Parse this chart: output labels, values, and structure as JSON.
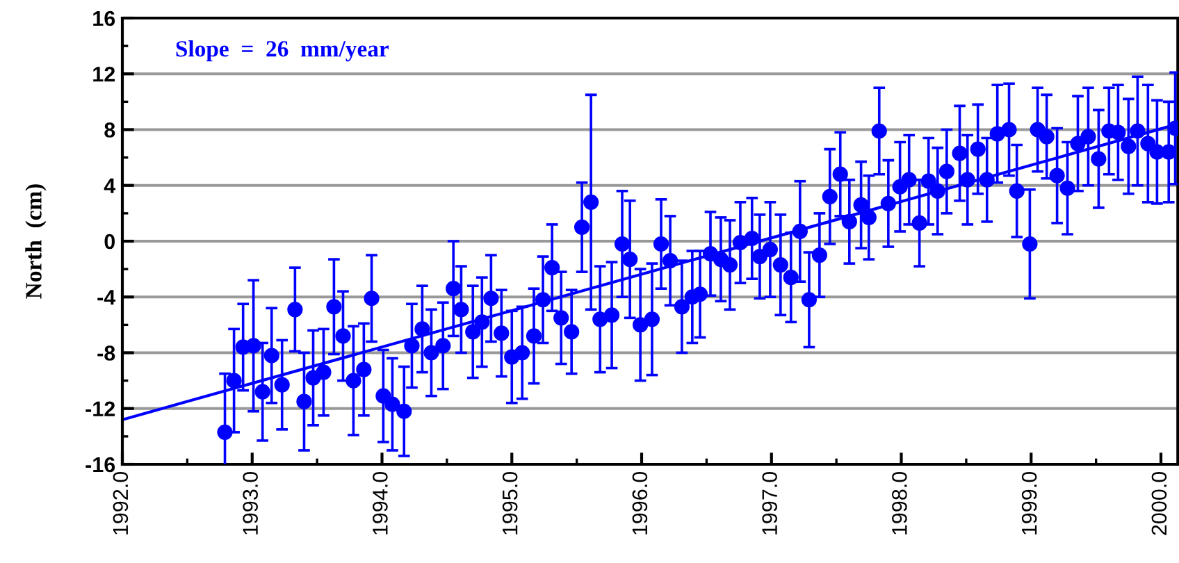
{
  "chart_data": {
    "type": "scatter",
    "ylabel": "North  (cm)",
    "annotations": [
      "Slope  =  26  mm/year"
    ],
    "xlim": [
      1992.0,
      2000.13
    ],
    "xticks": [
      {
        "value": 1992,
        "label": "1992.0"
      },
      {
        "value": 1993,
        "label": "1993.0"
      },
      {
        "value": 1994,
        "label": "1994.0"
      },
      {
        "value": 1995,
        "label": "1995.0"
      },
      {
        "value": 1996,
        "label": "1996.0"
      },
      {
        "value": 1997,
        "label": "1997.0"
      },
      {
        "value": 1998,
        "label": "1998.0"
      },
      {
        "value": 1999,
        "label": "1999.0"
      },
      {
        "value": 2000,
        "label": "2000.0"
      }
    ],
    "ylim": [
      -16,
      16
    ],
    "yticks": [
      -16,
      -12,
      -8,
      -4,
      0,
      4,
      8,
      12,
      16
    ],
    "grid": "y",
    "marker": "circle",
    "series": [
      {
        "color": "#0000ff",
        "x": [
          1992.79,
          1992.86,
          1992.93,
          1993.01,
          1993.08,
          1993.15,
          1993.23,
          1993.33,
          1993.4,
          1993.47,
          1993.55,
          1993.63,
          1993.7,
          1993.78,
          1993.86,
          1993.92,
          1994.01,
          1994.08,
          1994.17,
          1994.23,
          1994.31,
          1994.38,
          1994.47,
          1994.55,
          1994.61,
          1994.7,
          1994.77,
          1994.84,
          1994.92,
          1995.0,
          1995.08,
          1995.17,
          1995.24,
          1995.31,
          1995.38,
          1995.46,
          1995.54,
          1995.61,
          1995.68,
          1995.77,
          1995.85,
          1995.91,
          1995.99,
          1996.08,
          1996.15,
          1996.22,
          1996.31,
          1996.39,
          1996.45,
          1996.53,
          1996.61,
          1996.68,
          1996.76,
          1996.85,
          1996.91,
          1996.99,
          1997.07,
          1997.15,
          1997.22,
          1997.29,
          1997.37,
          1997.45,
          1997.53,
          1997.6,
          1997.69,
          1997.75,
          1997.83,
          1997.9,
          1997.99,
          1998.06,
          1998.14,
          1998.21,
          1998.28,
          1998.35,
          1998.45,
          1998.51,
          1998.59,
          1998.66,
          1998.74,
          1998.83,
          1998.89,
          1998.99,
          1999.05,
          1999.12,
          1999.2,
          1999.28,
          1999.36,
          1999.44,
          1999.52,
          1999.6,
          1999.67,
          1999.75,
          1999.82,
          1999.9,
          1999.97,
          2000.06,
          2000.11
        ],
        "values": [
          -13.7,
          -10.0,
          -7.6,
          -7.5,
          -10.8,
          -8.2,
          -10.3,
          -4.9,
          -11.5,
          -9.8,
          -9.4,
          -4.7,
          -6.8,
          -10.0,
          -9.2,
          -4.1,
          -11.1,
          -11.7,
          -12.2,
          -7.5,
          -6.3,
          -8.0,
          -7.5,
          -3.4,
          -4.9,
          -6.5,
          -5.8,
          -4.1,
          -6.6,
          -8.3,
          -8.0,
          -6.8,
          -4.2,
          -1.9,
          -5.5,
          -6.5,
          1.0,
          2.8,
          -5.6,
          -5.3,
          -0.2,
          -1.3,
          -6.0,
          -5.6,
          -0.2,
          -1.4,
          -4.7,
          -4.0,
          -3.8,
          -0.9,
          -1.3,
          -1.7,
          -0.1,
          0.2,
          -1.1,
          -0.6,
          -1.7,
          -2.6,
          0.7,
          -4.2,
          -1.0,
          3.2,
          4.8,
          1.4,
          2.6,
          1.7,
          7.9,
          2.7,
          3.9,
          4.4,
          1.3,
          4.3,
          3.6,
          5.0,
          6.3,
          4.4,
          6.6,
          4.4,
          7.7,
          8.0,
          3.6,
          -0.2,
          8.0,
          7.5,
          4.7,
          3.8,
          7.0,
          7.5,
          5.9,
          7.9,
          7.8,
          6.8,
          7.9,
          7.0,
          6.4,
          6.4,
          8.1
        ],
        "errors": [
          4.2,
          3.7,
          3.1,
          4.7,
          3.5,
          3.4,
          3.2,
          3.0,
          3.5,
          3.4,
          3.1,
          3.4,
          3.2,
          3.9,
          3.3,
          3.1,
          3.3,
          3.3,
          3.2,
          3.0,
          3.1,
          3.1,
          3.1,
          3.4,
          3.1,
          3.3,
          3.2,
          3.1,
          3.1,
          3.3,
          3.3,
          3.4,
          3.1,
          3.1,
          3.3,
          3.0,
          3.2,
          7.7,
          3.8,
          3.8,
          3.8,
          4.2,
          4.0,
          4.0,
          3.2,
          3.2,
          3.3,
          3.3,
          3.1,
          3.0,
          3.0,
          3.2,
          2.9,
          2.9,
          3.0,
          3.4,
          3.6,
          3.2,
          3.6,
          3.4,
          3.0,
          3.4,
          3.0,
          3.0,
          3.1,
          3.0,
          3.1,
          3.1,
          3.2,
          3.2,
          3.1,
          3.1,
          3.1,
          3.0,
          3.4,
          3.2,
          3.2,
          3.0,
          3.5,
          3.3,
          3.3,
          3.9,
          3.0,
          3.0,
          3.4,
          3.3,
          3.4,
          3.5,
          3.5,
          3.1,
          3.4,
          3.4,
          3.9,
          4.2,
          3.7,
          3.6,
          4.0
        ]
      },
      {
        "type": "line",
        "color": "#0000ff",
        "marker": "none",
        "x": [
          1992.0,
          2000.13
        ],
        "values": [
          -12.8,
          8.4
        ]
      }
    ]
  }
}
